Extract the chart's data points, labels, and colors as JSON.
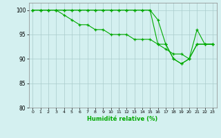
{
  "xlabel": "Humidité relative (%)",
  "bg_color": "#d4f0f0",
  "line_color": "#00aa00",
  "grid_color": "#aacccc",
  "xlim": [
    -0.5,
    23.5
  ],
  "ylim": [
    80,
    101.5
  ],
  "yticks": [
    80,
    85,
    90,
    95,
    100
  ],
  "xtick_labels": [
    "0",
    "1",
    "2",
    "3",
    "4",
    "5",
    "6",
    "7",
    "8",
    "9",
    "10",
    "11",
    "12",
    "13",
    "14",
    "15",
    "16",
    "17",
    "18",
    "19",
    "20",
    "21",
    "22",
    "23"
  ],
  "series": [
    [
      100,
      100,
      100,
      100,
      100,
      100,
      100,
      100,
      100,
      100,
      100,
      100,
      100,
      100,
      100,
      100,
      98,
      93,
      90,
      89,
      90,
      96,
      93,
      93
    ],
    [
      100,
      100,
      100,
      100,
      100,
      100,
      100,
      100,
      100,
      100,
      100,
      100,
      100,
      100,
      100,
      100,
      93,
      93,
      90,
      89,
      90,
      93,
      93,
      93
    ],
    [
      100,
      100,
      100,
      100,
      99,
      98,
      97,
      97,
      96,
      96,
      95,
      95,
      95,
      94,
      94,
      94,
      93,
      92,
      91,
      91,
      90,
      93,
      93,
      93
    ]
  ]
}
